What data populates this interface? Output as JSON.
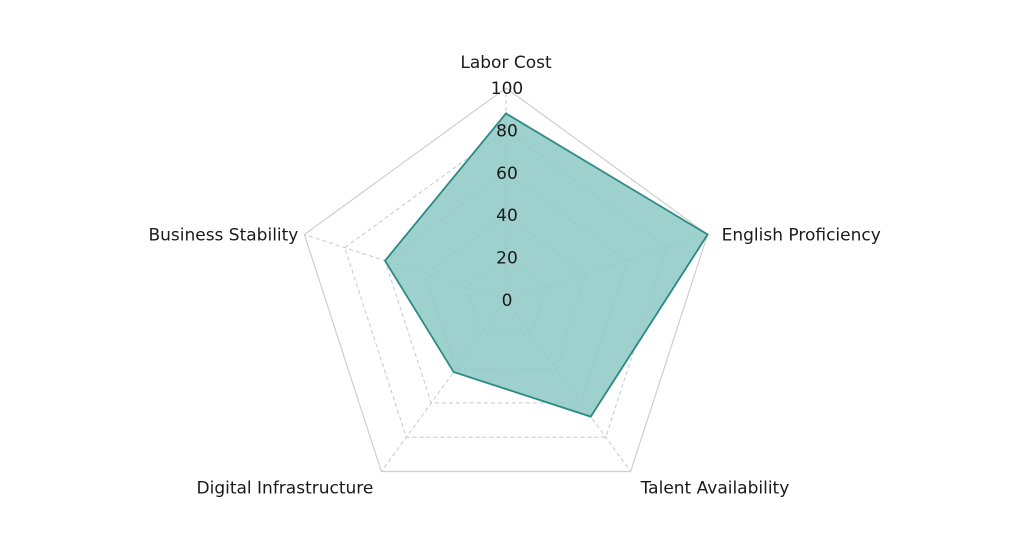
{
  "chart_data": {
    "type": "radar",
    "axes": [
      "Labor Cost",
      "English Proficiency",
      "Talent Availability",
      "Digital Infrastructure",
      "Business Stability"
    ],
    "rlim": [
      0,
      100
    ],
    "rticks": [
      "0",
      "20",
      "40",
      "60",
      "80",
      "100"
    ],
    "series": [
      {
        "values": [
          88,
          100,
          68,
          42,
          60
        ],
        "color": "#2a8a85",
        "fill": "#8dc8c6"
      }
    ],
    "grid": true,
    "legend": "none"
  }
}
